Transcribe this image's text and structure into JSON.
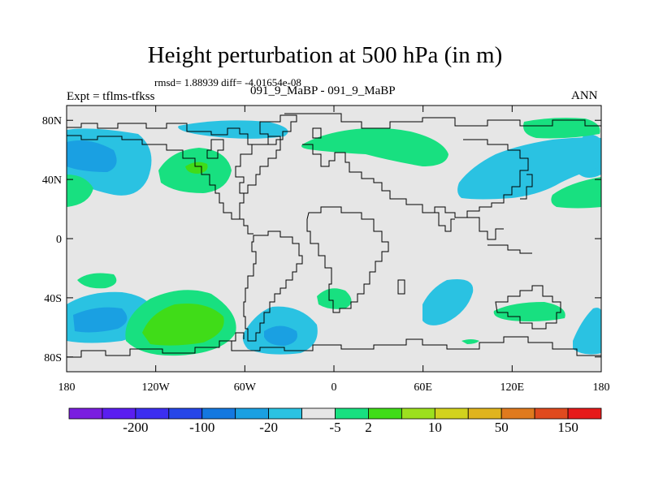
{
  "title": "Height perturbation at 500 hPa (in m)",
  "stats": "rmsd= 1.88939 diff= -4.01654e-08",
  "left_label": "Expt = tflms-tfkss",
  "center_label": "091_9_MaBP - 091_9_MaBP",
  "right_label": "ANN",
  "map": {
    "background": "#e6e6e6",
    "lon_range": [
      -180,
      180
    ],
    "lat_range": [
      -90,
      90
    ],
    "x_ticks": [
      {
        "lon": -180,
        "label": "180"
      },
      {
        "lon": -120,
        "label": "120W"
      },
      {
        "lon": -60,
        "label": "60W"
      },
      {
        "lon": 0,
        "label": "0"
      },
      {
        "lon": 60,
        "label": "60E"
      },
      {
        "lon": 120,
        "label": "120E"
      },
      {
        "lon": 180,
        "label": "180"
      }
    ],
    "y_ticks": [
      {
        "lat": 80,
        "label": "80N"
      },
      {
        "lat": 40,
        "label": "40N"
      },
      {
        "lat": 0,
        "label": "0"
      },
      {
        "lat": -40,
        "label": "40S"
      },
      {
        "lat": -80,
        "label": "80S"
      }
    ]
  },
  "colorbar": {
    "colors": [
      "#7a1ee0",
      "#5a1ef0",
      "#3c2ef0",
      "#2646e8",
      "#1478e0",
      "#1aa0e2",
      "#2ac2e2",
      "#e6e6e6",
      "#18e080",
      "#40dc18",
      "#9ce01e",
      "#d2d21e",
      "#e0b41e",
      "#e07a1e",
      "#e04a1e",
      "#e61a1a"
    ],
    "labels": [
      {
        "label": "-200",
        "after_index": 1
      },
      {
        "label": "-100",
        "after_index": 3
      },
      {
        "label": "-20",
        "after_index": 5
      },
      {
        "label": "-5",
        "after_index": 7
      },
      {
        "label": "2",
        "after_index": 8
      },
      {
        "label": "10",
        "after_index": 10
      },
      {
        "label": "50",
        "after_index": 12
      },
      {
        "label": "150",
        "after_index": 14
      }
    ]
  }
}
